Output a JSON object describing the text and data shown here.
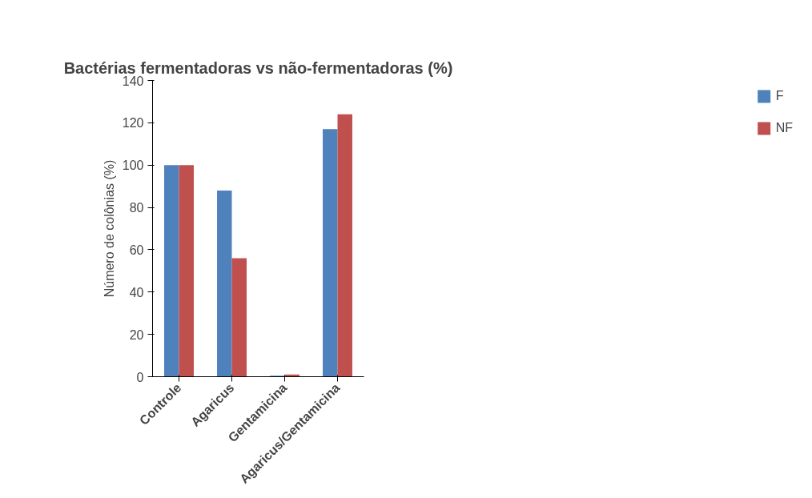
{
  "chart_data": {
    "type": "bar",
    "title": "Bactérias fermentadoras vs não-fermentadoras (%)",
    "ylabel": "Número de colônias (%)",
    "categories": [
      "Controle",
      "Agaricus",
      "Gentamicina",
      "Agaricus/Gentamicina"
    ],
    "series": [
      {
        "name": "F",
        "color": "#4f81bd",
        "values": [
          100,
          88,
          0.5,
          117
        ]
      },
      {
        "name": "NF",
        "color": "#c0504d",
        "values": [
          100,
          56,
          1,
          124
        ]
      }
    ],
    "ylim": [
      0,
      140
    ],
    "yticks": [
      0,
      20,
      40,
      60,
      80,
      100,
      120,
      140
    ],
    "grid": false,
    "legend": "right"
  }
}
